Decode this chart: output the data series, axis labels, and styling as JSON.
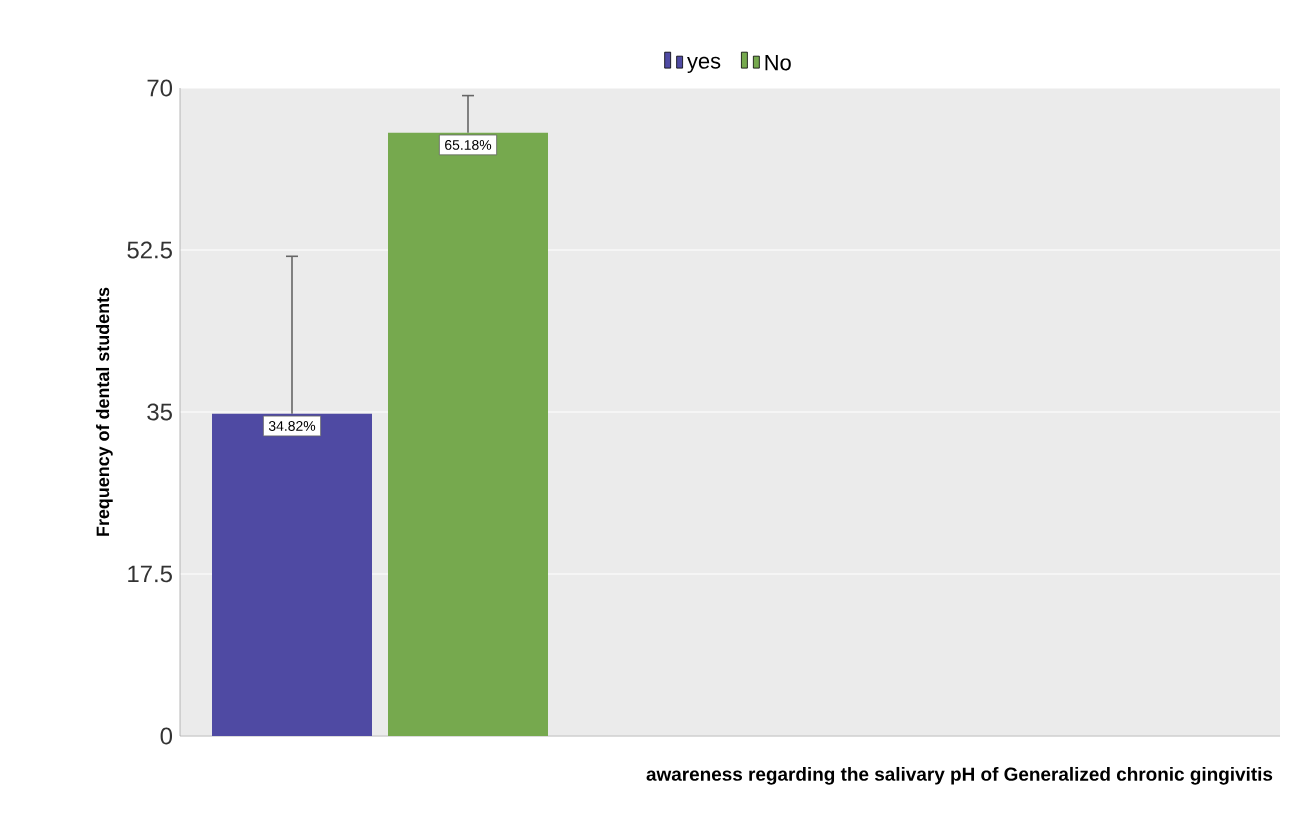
{
  "chart_data": {
    "type": "bar",
    "ylabel": "Frequency of dental students",
    "xlabel": "awareness regarding the salivary pH of Generalized chronic gingivitis",
    "categories": [
      null
    ],
    "series": [
      {
        "name": "yes",
        "color": "#4f4aa3",
        "values": [
          34.82
        ],
        "errors": [
          17
        ],
        "value_labels": [
          "34.82%"
        ]
      },
      {
        "name": "No",
        "color": "#76a94e",
        "values": [
          65.18
        ],
        "errors": [
          4
        ],
        "value_labels": [
          "65.18%"
        ]
      }
    ],
    "ylim": [
      0,
      70
    ],
    "yticks": [
      0,
      17.5,
      35,
      52.5,
      70
    ],
    "grid": "y",
    "legend": "top"
  }
}
